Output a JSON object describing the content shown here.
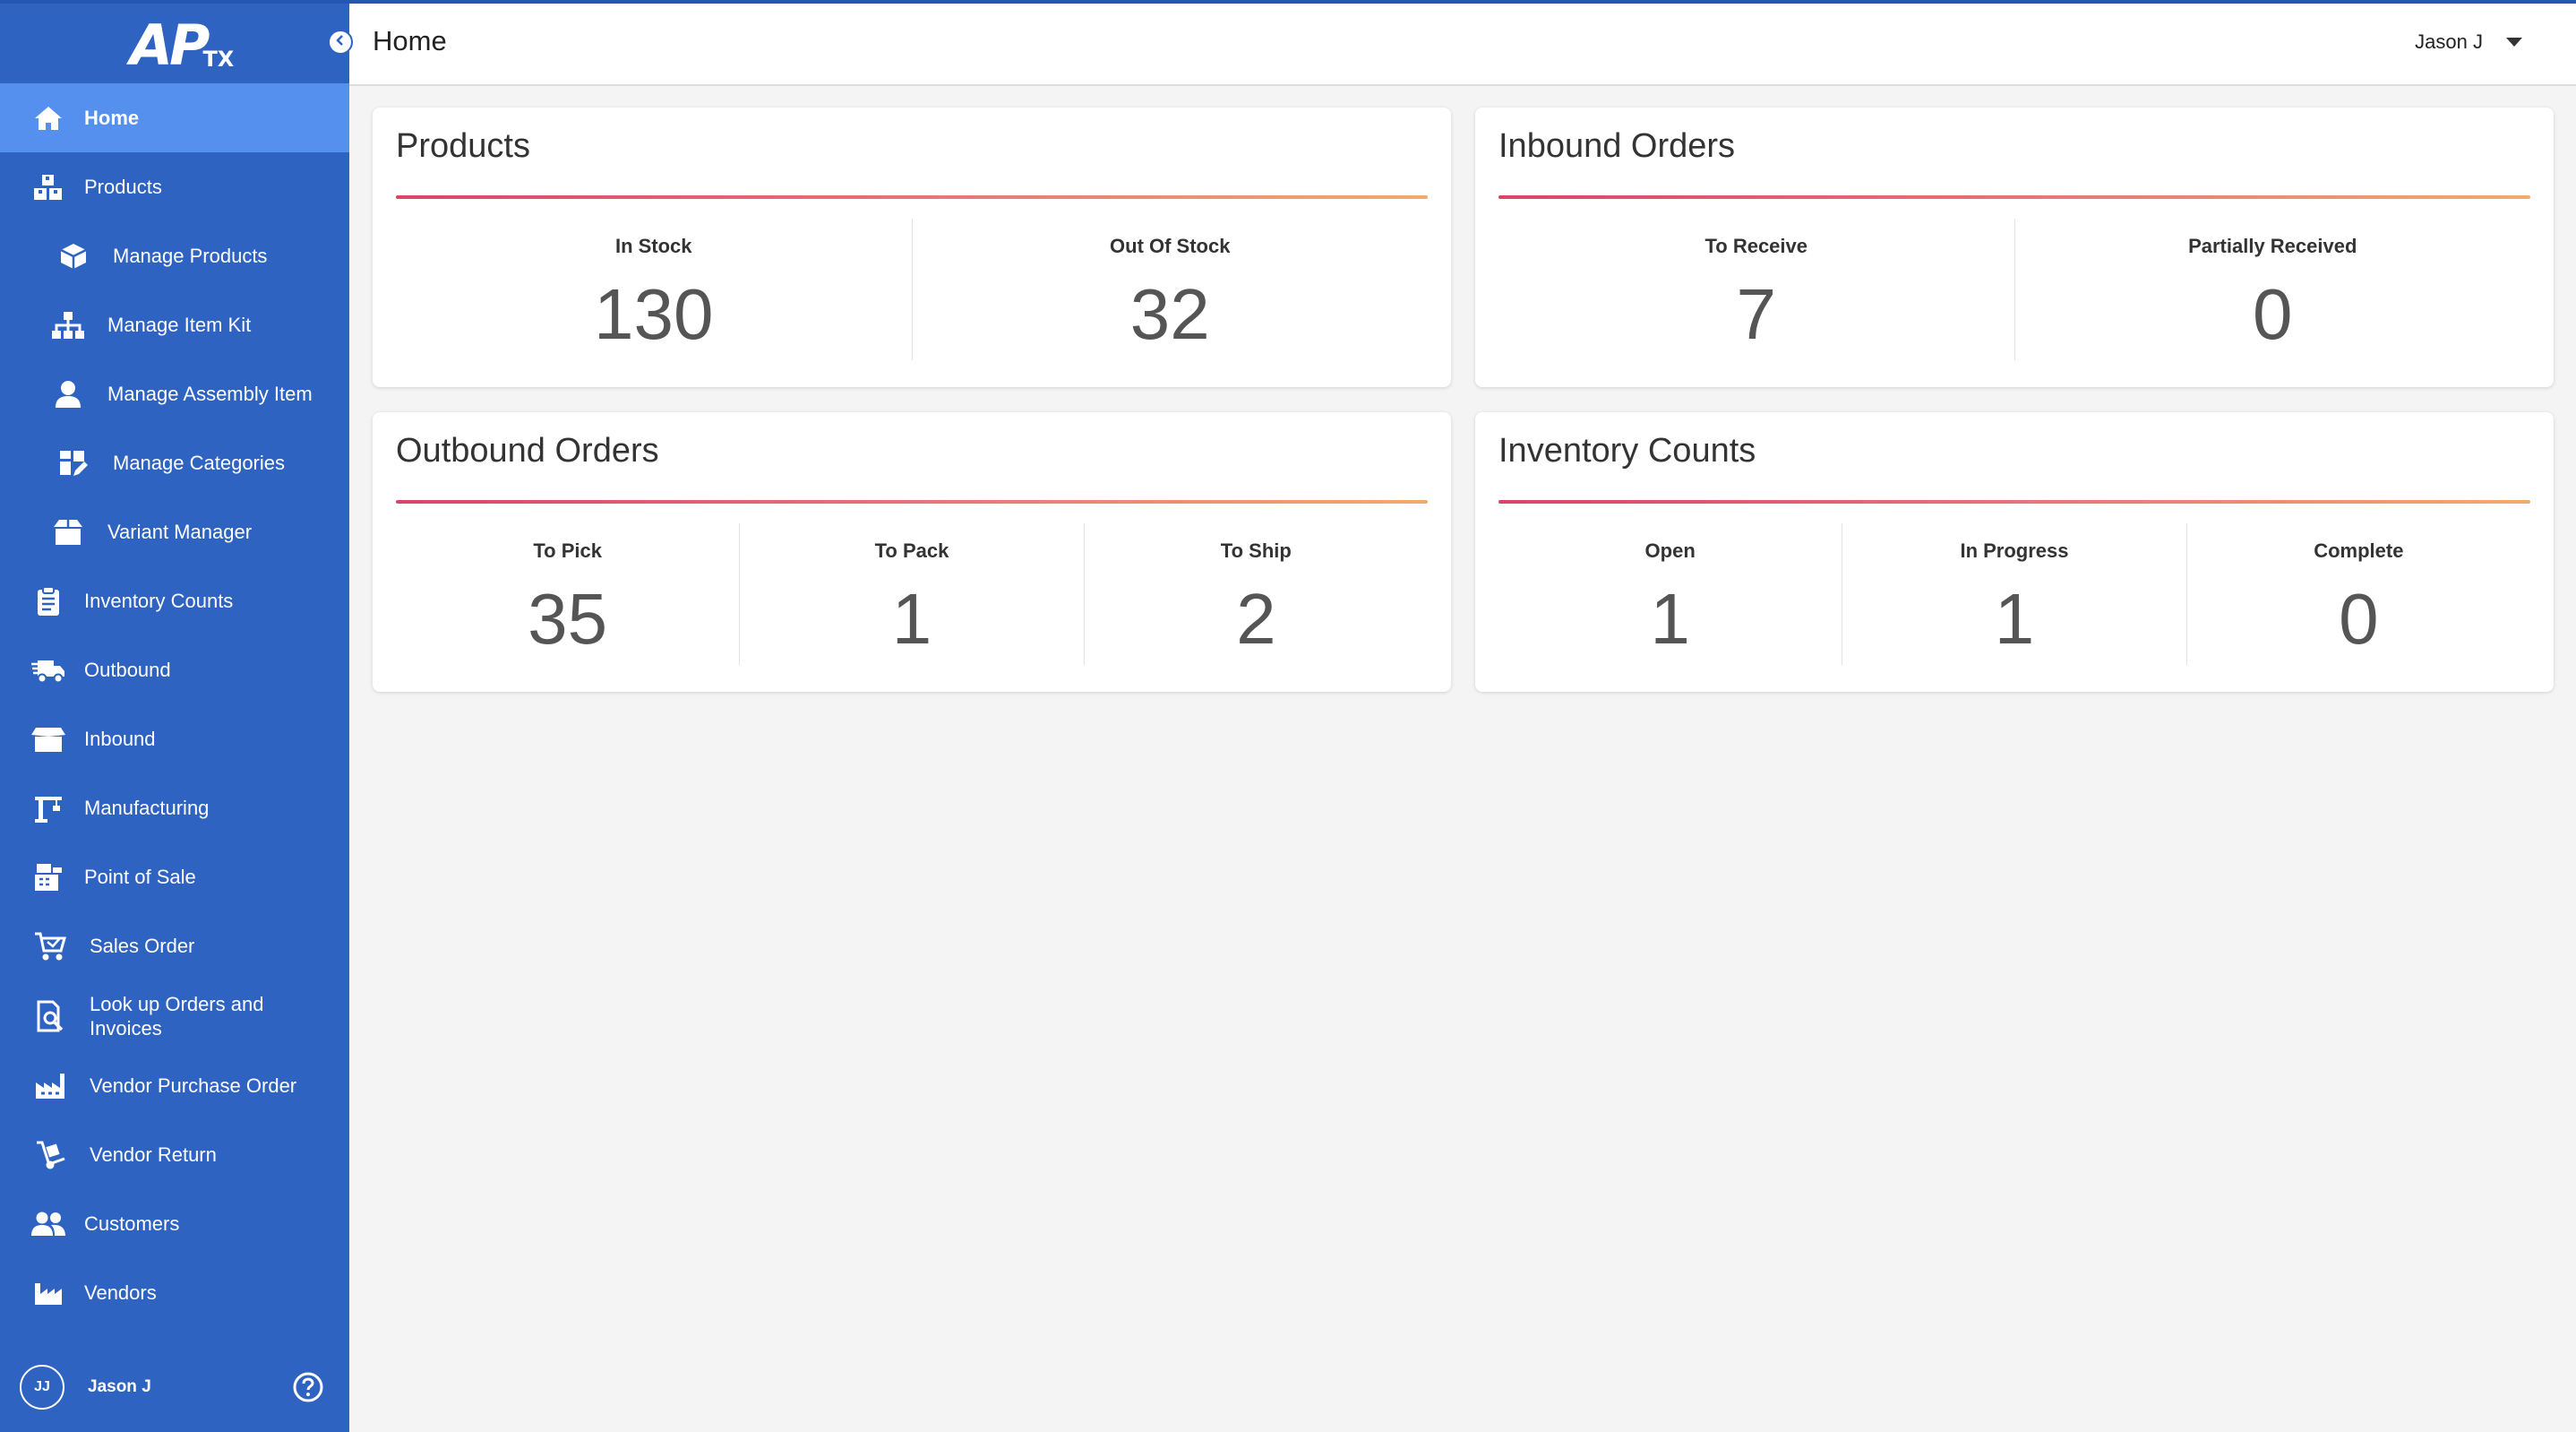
{
  "app": {
    "logo_main": "AP",
    "logo_sub": "TX"
  },
  "colors": {
    "sidebar": "#2e63c2",
    "sidebar_active": "#5590ee",
    "accent_rule_start": "#d9456a",
    "accent_rule_end": "#f0ab6e"
  },
  "sidebar": {
    "items": [
      {
        "label": "Home",
        "icon": "home-icon",
        "active": true
      },
      {
        "label": "Products",
        "icon": "boxes-icon"
      },
      {
        "label": "Manage Products",
        "icon": "cube-icon"
      },
      {
        "label": "Manage Item Kit",
        "icon": "sitemap-icon"
      },
      {
        "label": "Manage Assembly Item",
        "icon": "user-icon"
      },
      {
        "label": "Manage Categories",
        "icon": "categories-icon"
      },
      {
        "label": "Variant Manager",
        "icon": "box-open-icon"
      },
      {
        "label": "Inventory Counts",
        "icon": "clipboard-icon"
      },
      {
        "label": "Outbound",
        "icon": "truck-icon"
      },
      {
        "label": "Inbound",
        "icon": "inbox-box-icon"
      },
      {
        "label": "Manufacturing",
        "icon": "crane-icon"
      },
      {
        "label": "Point of Sale",
        "icon": "register-icon"
      },
      {
        "label": "Sales Order",
        "icon": "cart-icon"
      },
      {
        "label": "Look up Orders and\nInvoices",
        "icon": "doc-search-icon"
      },
      {
        "label": "Vendor Purchase Order",
        "icon": "factory-icon"
      },
      {
        "label": "Vendor Return",
        "icon": "dolly-icon"
      },
      {
        "label": "Customers",
        "icon": "users-icon"
      },
      {
        "label": "Vendors",
        "icon": "industry-icon"
      }
    ],
    "footer": {
      "initials": "JJ",
      "name": "Jason J",
      "help_icon": "question-circle-icon"
    }
  },
  "header": {
    "title": "Home",
    "user": "Jason J"
  },
  "cards": {
    "products": {
      "title": "Products",
      "stats": [
        {
          "label": "In Stock",
          "value": "130"
        },
        {
          "label": "Out Of Stock",
          "value": "32"
        }
      ]
    },
    "inbound": {
      "title": "Inbound Orders",
      "stats": [
        {
          "label": "To Receive",
          "value": "7"
        },
        {
          "label": "Partially Received",
          "value": "0"
        }
      ]
    },
    "outbound": {
      "title": "Outbound Orders",
      "stats": [
        {
          "label": "To Pick",
          "value": "35"
        },
        {
          "label": "To Pack",
          "value": "1"
        },
        {
          "label": "To Ship",
          "value": "2"
        }
      ]
    },
    "inventory": {
      "title": "Inventory Counts",
      "stats": [
        {
          "label": "Open",
          "value": "1"
        },
        {
          "label": "In Progress",
          "value": "1"
        },
        {
          "label": "Complete",
          "value": "0"
        }
      ]
    }
  }
}
